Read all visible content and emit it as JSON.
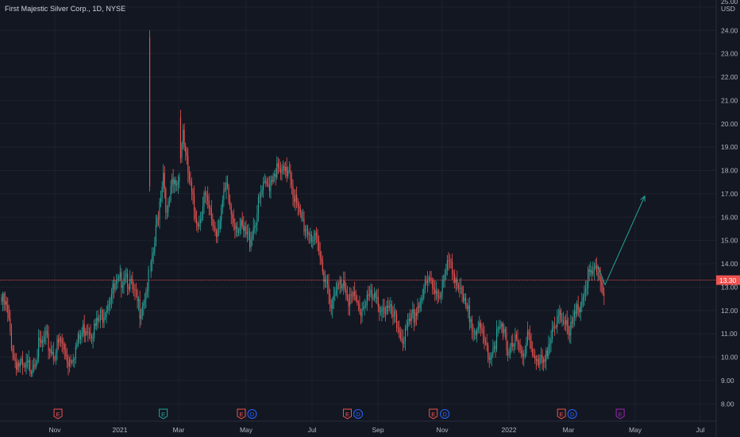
{
  "chart_data": {
    "type": "candlestick",
    "title": "First Majestic Silver Corp., 1D, NYSE",
    "currency": "USD",
    "ylim": [
      7.6,
      25.2
    ],
    "y_ticks": [
      "25.00",
      "24.00",
      "23.00",
      "22.00",
      "21.00",
      "20.00",
      "19.00",
      "18.00",
      "17.00",
      "16.00",
      "15.00",
      "14.00",
      "13.00",
      "12.00",
      "11.00",
      "10.00",
      "9.00",
      "8.00"
    ],
    "x_ticks": [
      "Nov",
      "2021",
      "Mar",
      "May",
      "Jul",
      "Sep",
      "Nov",
      "2022",
      "Mar",
      "May",
      "Jul"
    ],
    "last_price": "13.30",
    "up_color": "#26a69a",
    "down_color": "#ef5350",
    "projection_color": "#26a69a",
    "price_line_color": "#ef5350",
    "keypoints": [
      [
        0,
        12.6
      ],
      [
        4,
        12.3
      ],
      [
        10,
        10.2
      ],
      [
        18,
        9.6
      ],
      [
        24,
        9.9
      ],
      [
        30,
        10.6
      ],
      [
        36,
        10.9
      ],
      [
        42,
        10.4
      ],
      [
        48,
        10.9
      ],
      [
        54,
        10.1
      ],
      [
        60,
        10.6
      ],
      [
        68,
        11.6
      ],
      [
        75,
        11.4
      ],
      [
        82,
        12.1
      ],
      [
        88,
        12.9
      ],
      [
        95,
        13.3
      ],
      [
        100,
        14.0
      ],
      [
        106,
        13.0
      ],
      [
        112,
        12.3
      ],
      [
        117,
        13.1
      ],
      [
        122,
        14.2
      ],
      [
        127,
        16.5
      ],
      [
        131,
        18.2
      ],
      [
        134,
        16.2
      ],
      [
        138,
        17.5
      ],
      [
        143,
        17.8
      ],
      [
        147,
        20.0
      ],
      [
        149,
        18.8
      ],
      [
        153,
        17.4
      ],
      [
        156,
        16.5
      ],
      [
        160,
        16.0
      ],
      [
        164,
        17.2
      ],
      [
        168,
        16.4
      ],
      [
        174,
        15.6
      ],
      [
        178,
        16.6
      ],
      [
        182,
        17.4
      ],
      [
        186,
        16.4
      ],
      [
        190,
        16.0
      ],
      [
        196,
        15.5
      ],
      [
        201,
        15.3
      ],
      [
        206,
        16.2
      ],
      [
        211,
        17.3
      ],
      [
        216,
        17.6
      ],
      [
        221,
        18.3
      ],
      [
        225,
        18.1
      ],
      [
        230,
        18.0
      ],
      [
        233,
        18.5
      ],
      [
        236,
        17.4
      ],
      [
        240,
        16.4
      ],
      [
        246,
        15.8
      ],
      [
        250,
        15.6
      ],
      [
        255,
        15.0
      ],
      [
        259,
        14.2
      ],
      [
        264,
        13.4
      ],
      [
        268,
        12.4
      ],
      [
        272,
        13.1
      ],
      [
        277,
        13.6
      ],
      [
        281,
        12.8
      ],
      [
        286,
        12.6
      ],
      [
        291,
        12.2
      ],
      [
        296,
        12.9
      ],
      [
        301,
        12.6
      ],
      [
        306,
        12.5
      ],
      [
        311,
        12.3
      ],
      [
        316,
        12.0
      ],
      [
        321,
        11.5
      ],
      [
        326,
        11.0
      ],
      [
        331,
        11.6
      ],
      [
        336,
        12.3
      ],
      [
        341,
        12.9
      ],
      [
        347,
        13.5
      ],
      [
        351,
        13.2
      ],
      [
        356,
        13.0
      ],
      [
        361,
        14.0
      ],
      [
        364,
        14.4
      ],
      [
        368,
        13.6
      ],
      [
        372,
        12.8
      ],
      [
        376,
        12.2
      ],
      [
        381,
        11.8
      ],
      [
        386,
        11.4
      ],
      [
        391,
        10.8
      ],
      [
        396,
        10.4
      ],
      [
        401,
        11.1
      ],
      [
        405,
        11.4
      ],
      [
        410,
        10.6
      ],
      [
        414,
        11.0
      ],
      [
        418,
        10.6
      ],
      [
        422,
        10.1
      ],
      [
        426,
        11.5
      ],
      [
        430,
        10.4
      ],
      [
        434,
        9.8
      ],
      [
        438,
        10.1
      ],
      [
        442,
        10.7
      ],
      [
        447,
        11.2
      ],
      [
        452,
        11.9
      ],
      [
        457,
        12.0
      ],
      [
        461,
        11.3
      ],
      [
        466,
        12.1
      ],
      [
        471,
        12.9
      ],
      [
        475,
        13.6
      ],
      [
        479,
        13.7
      ],
      [
        483,
        13.9
      ],
      [
        486,
        13.4
      ],
      [
        488,
        13.1
      ]
    ],
    "spikes": [
      [
        120,
        17.3,
        24.0
      ],
      [
        145,
        18.5,
        20.6
      ]
    ],
    "events": [
      {
        "label": "E",
        "color": "#ef5350",
        "x_pct": 0.081
      },
      {
        "label": "E",
        "color": "#26a69a",
        "x_pct": 0.228
      },
      {
        "label": "E",
        "color": "#ef5350",
        "x_pct": 0.337
      },
      {
        "label": "D",
        "color": "#2962ff",
        "x_pct": 0.352
      },
      {
        "label": "E",
        "color": "#ef5350",
        "x_pct": 0.485
      },
      {
        "label": "D",
        "color": "#2962ff",
        "x_pct": 0.5
      },
      {
        "label": "E",
        "color": "#ef5350",
        "x_pct": 0.605
      },
      {
        "label": "D",
        "color": "#2962ff",
        "x_pct": 0.621
      },
      {
        "label": "E",
        "color": "#ef5350",
        "x_pct": 0.784
      },
      {
        "label": "D",
        "color": "#2962ff",
        "x_pct": 0.799
      },
      {
        "label": "E",
        "color": "#9c27b0",
        "x_pct": 0.866
      }
    ]
  }
}
